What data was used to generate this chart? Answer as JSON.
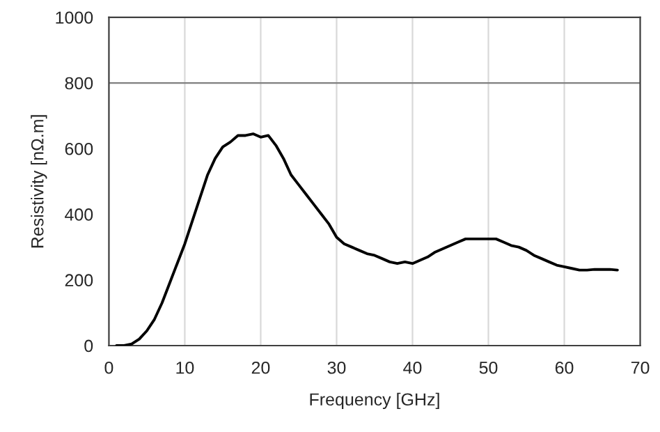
{
  "chart_data": {
    "type": "line",
    "xlabel": "Frequency [GHz]",
    "ylabel": "Resistivity [nΩ.m]",
    "xlim": [
      0,
      70
    ],
    "xticks": [
      0,
      10,
      20,
      30,
      40,
      50,
      60,
      70
    ],
    "ylim": [
      0,
      1000
    ],
    "yticks": [
      0,
      200,
      400,
      600,
      800,
      1000
    ],
    "grid": "x",
    "ref_lines": [
      {
        "axis": "y",
        "value": 800,
        "color": "#808080"
      }
    ],
    "series": [
      {
        "color": "#000000",
        "x": [
          1,
          2,
          3,
          4,
          5,
          6,
          7,
          8,
          9,
          10,
          11,
          12,
          13,
          14,
          15,
          16,
          17,
          18,
          19,
          20,
          21,
          22,
          23,
          24,
          25,
          26,
          27,
          28,
          29,
          30,
          31,
          32,
          33,
          34,
          35,
          36,
          37,
          38,
          39,
          40,
          41,
          42,
          43,
          44,
          45,
          46,
          47,
          48,
          49,
          50,
          51,
          52,
          53,
          54,
          55,
          56,
          57,
          58,
          59,
          60,
          61,
          62,
          63,
          64,
          65,
          66,
          67
        ],
        "values": [
          0,
          0,
          5,
          20,
          45,
          80,
          130,
          190,
          250,
          310,
          380,
          450,
          520,
          570,
          605,
          620,
          640,
          640,
          645,
          635,
          640,
          610,
          570,
          520,
          490,
          460,
          430,
          400,
          370,
          330,
          310,
          300,
          290,
          280,
          275,
          265,
          255,
          250,
          255,
          250,
          260,
          270,
          285,
          295,
          305,
          315,
          325,
          325,
          325,
          325,
          325,
          315,
          305,
          300,
          290,
          275,
          265,
          255,
          245,
          240,
          235,
          230,
          230,
          232,
          232,
          232,
          230
        ]
      }
    ]
  }
}
